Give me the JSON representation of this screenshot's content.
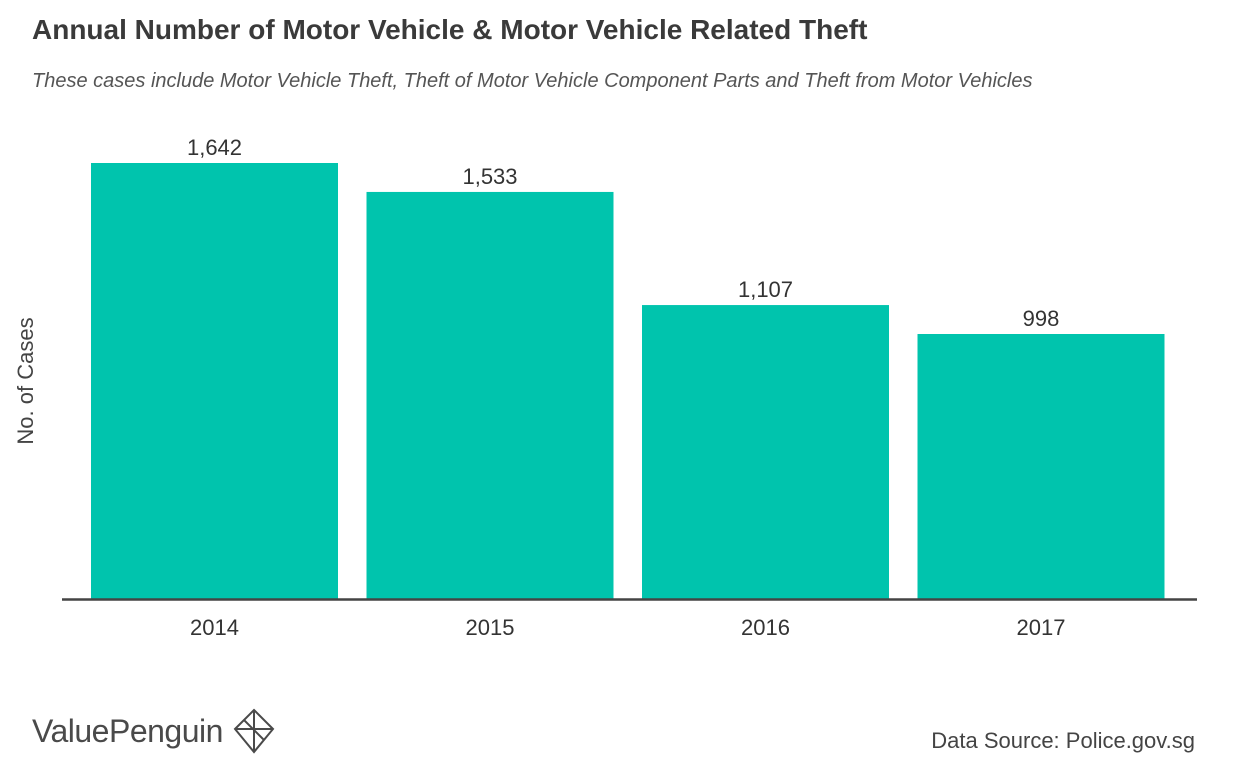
{
  "header": {
    "title": "Annual Number of Motor Vehicle & Motor Vehicle Related Theft",
    "subtitle": "These cases include Motor Vehicle Theft, Theft of Motor Vehicle Component Parts and Theft from Motor Vehicles"
  },
  "footer": {
    "brand": "ValuePenguin",
    "brand_icon": "valuepenguin-logo-icon",
    "source": "Data Source: Police.gov.sg"
  },
  "chart_data": {
    "type": "bar",
    "title": "Annual Number of Motor Vehicle & Motor Vehicle Related Theft",
    "subtitle": "These cases include Motor Vehicle Theft, Theft of Motor Vehicle Component Parts and Theft from Motor Vehicles",
    "categories": [
      "2014",
      "2015",
      "2016",
      "2017"
    ],
    "values": [
      1642,
      1533,
      1107,
      998
    ],
    "value_labels": [
      "1,642",
      "1,533",
      "1,107",
      "998"
    ],
    "xlabel": "",
    "ylabel": "No. of Cases",
    "ylim": [
      0,
      1642
    ],
    "grid": false,
    "legend": "none",
    "bar_color": "#00c4ad",
    "axis_color": "#444444"
  }
}
